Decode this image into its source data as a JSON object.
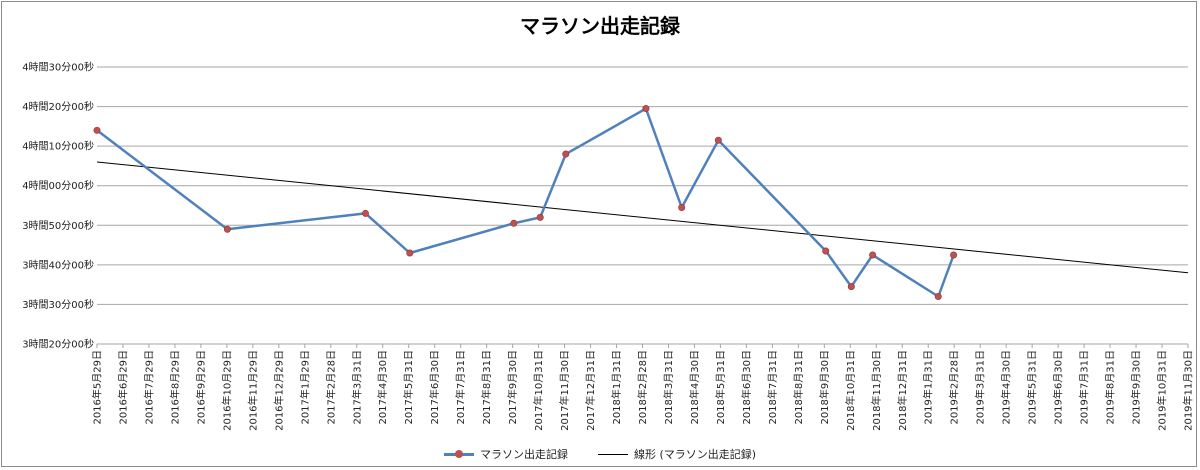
{
  "chart_data": {
    "type": "line",
    "title": "マラソン出走記録",
    "y_ticks": [
      "4時間30分00秒",
      "4時間20分00秒",
      "4時間10分00秒",
      "4時間00分00秒",
      "3時間50分00秒",
      "3時間40分00秒",
      "3時間30分00秒",
      "3時間20分00秒"
    ],
    "y_range_minutes": [
      200,
      270
    ],
    "x_ticks": [
      "2016年5月29日",
      "2016年6月29日",
      "2016年7月29日",
      "2016年8月29日",
      "2016年9月29日",
      "2016年10月29日",
      "2016年11月29日",
      "2016年12月29日",
      "2017年1月29日",
      "2017年2月28日",
      "2017年3月31日",
      "2017年4月30日",
      "2017年5月31日",
      "2017年6月30日",
      "2017年7月31日",
      "2017年8月31日",
      "2017年9月30日",
      "2017年10月31日",
      "2017年11月30日",
      "2017年12月31日",
      "2018年1月31日",
      "2018年2月28日",
      "2018年3月31日",
      "2018年4月30日",
      "2018年5月31日",
      "2018年6月30日",
      "2018年7月31日",
      "2018年8月31日",
      "2018年9月30日",
      "2018年10月31日",
      "2018年11月30日",
      "2018年12月31日",
      "2019年1月31日",
      "2019年2月28日",
      "2019年3月31日",
      "2019年4月30日",
      "2019年5月31日",
      "2019年6月30日",
      "2019年7月31日",
      "2019年8月31日",
      "2019年9月30日",
      "2019年10月31日",
      "2019年11月30日"
    ],
    "series": [
      {
        "name": "マラソン出走記録",
        "color": "#4f81bd",
        "marker_color": "#c0504d",
        "x": [
          "2016-05-29",
          "2016-10-29",
          "2017-04-09",
          "2017-05-31",
          "2017-09-30",
          "2017-10-31",
          "2017-11-30",
          "2018-03-04",
          "2018-04-15",
          "2018-05-28",
          "2018-10-01",
          "2018-10-31",
          "2018-11-25",
          "2019-02-10",
          "2019-02-28"
        ],
        "y_minutes": [
          254,
          229,
          233,
          223,
          230.5,
          232,
          248,
          259.5,
          234.5,
          251.5,
          223.5,
          214.5,
          222.5,
          212,
          222.5
        ]
      }
    ],
    "trendline": {
      "name": "線形 (マラソン出走記録)",
      "color": "#000000",
      "from": {
        "x": "2016-05-29",
        "y_minutes": 246
      },
      "to": {
        "x": "2019-11-30",
        "y_minutes": 218
      }
    },
    "gridlines": true,
    "legend_position": "bottom"
  }
}
